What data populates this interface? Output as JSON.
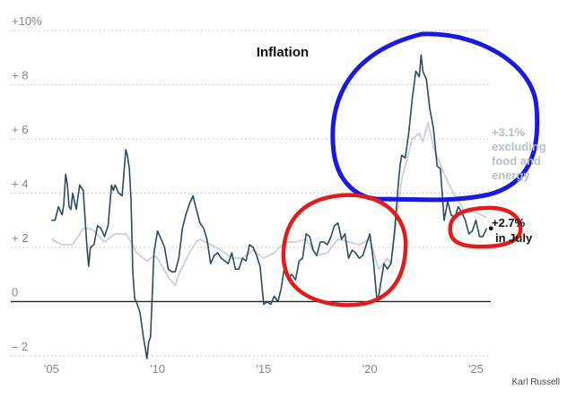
{
  "chart_data": {
    "type": "line",
    "title": "Inflation",
    "xlabel": "",
    "ylabel": "",
    "y_tick_labels": [
      "+10%",
      "+ 8",
      "+ 6",
      "+ 4",
      "+ 2",
      "0",
      "– 2"
    ],
    "y_ticks": [
      10,
      8,
      6,
      4,
      2,
      0,
      -2
    ],
    "x_tick_labels": [
      "'05",
      "'10",
      "'15",
      "'20",
      "'25"
    ],
    "x_ticks": [
      2005,
      2010,
      2015,
      2020,
      2025
    ],
    "xlim": [
      2004.9,
      2025.7
    ],
    "ylim": [
      -2.3,
      10.4
    ],
    "grid": "horizontal dotted",
    "colors": {
      "headline": "#2e4a5e",
      "core": "#c3ccd8",
      "zero_line": "#222222",
      "highlight_blue": "#1a1adf",
      "highlight_red": "#e21b1b"
    },
    "series": [
      {
        "key": "headline",
        "x": [
          2005.0,
          2005.17,
          2005.33,
          2005.5,
          2005.58,
          2005.67,
          2005.75,
          2005.83,
          2005.92,
          2006.0,
          2006.17,
          2006.33,
          2006.5,
          2006.67,
          2006.75,
          2006.83,
          2007.0,
          2007.17,
          2007.33,
          2007.5,
          2007.67,
          2007.83,
          2007.92,
          2008.0,
          2008.17,
          2008.33,
          2008.5,
          2008.58,
          2008.67,
          2008.75,
          2008.83,
          2008.92,
          2009.0,
          2009.17,
          2009.33,
          2009.5,
          2009.58,
          2009.67,
          2009.83,
          2010.0,
          2010.17,
          2010.33,
          2010.5,
          2010.67,
          2010.83,
          2011.0,
          2011.17,
          2011.33,
          2011.5,
          2011.67,
          2011.83,
          2012.0,
          2012.17,
          2012.33,
          2012.5,
          2012.67,
          2012.83,
          2013.0,
          2013.17,
          2013.33,
          2013.5,
          2013.67,
          2013.83,
          2014.0,
          2014.17,
          2014.33,
          2014.5,
          2014.67,
          2014.83,
          2015.0,
          2015.17,
          2015.33,
          2015.5,
          2015.67,
          2015.83,
          2016.0,
          2016.17,
          2016.33,
          2016.5,
          2016.67,
          2016.83,
          2017.0,
          2017.17,
          2017.33,
          2017.5,
          2017.67,
          2017.83,
          2018.0,
          2018.17,
          2018.33,
          2018.5,
          2018.67,
          2018.83,
          2019.0,
          2019.17,
          2019.33,
          2019.5,
          2019.67,
          2019.83,
          2020.0,
          2020.17,
          2020.33,
          2020.42,
          2020.5,
          2020.67,
          2020.83,
          2021.0,
          2021.17,
          2021.33,
          2021.42,
          2021.5,
          2021.67,
          2021.83,
          2022.0,
          2022.17,
          2022.33,
          2022.42,
          2022.5,
          2022.67,
          2022.83,
          2023.0,
          2023.17,
          2023.33,
          2023.5,
          2023.67,
          2023.83,
          2024.0,
          2024.17,
          2024.33,
          2024.5,
          2024.67,
          2024.83,
          2025.0,
          2025.17,
          2025.33,
          2025.5
        ],
        "y": [
          3.0,
          3.0,
          3.5,
          3.2,
          3.6,
          4.7,
          4.3,
          3.5,
          3.4,
          4.0,
          3.4,
          4.3,
          4.1,
          2.0,
          1.3,
          2.0,
          2.1,
          2.8,
          2.7,
          2.4,
          2.8,
          4.3,
          4.1,
          4.3,
          4.0,
          3.9,
          5.6,
          5.4,
          4.9,
          3.7,
          1.1,
          0.1,
          0.0,
          -0.4,
          -1.3,
          -2.1,
          -1.5,
          -1.3,
          1.8,
          2.6,
          2.3,
          2.0,
          1.2,
          1.1,
          1.1,
          1.6,
          2.7,
          3.2,
          3.6,
          3.9,
          3.4,
          2.9,
          2.7,
          2.3,
          1.4,
          1.7,
          1.8,
          1.6,
          1.5,
          1.4,
          1.8,
          1.2,
          1.2,
          1.6,
          1.5,
          2.1,
          2.0,
          1.7,
          1.3,
          -0.1,
          0.0,
          -0.1,
          0.2,
          0.0,
          0.5,
          1.4,
          0.9,
          1.0,
          0.8,
          1.5,
          1.6,
          2.5,
          2.4,
          1.9,
          1.7,
          2.2,
          2.2,
          2.1,
          2.4,
          2.8,
          2.9,
          2.3,
          2.5,
          1.6,
          1.9,
          1.8,
          1.6,
          1.7,
          2.1,
          2.5,
          1.5,
          0.1,
          0.2,
          0.6,
          1.4,
          1.2,
          1.4,
          2.6,
          4.2,
          5.0,
          5.4,
          5.3,
          6.2,
          7.5,
          8.5,
          8.3,
          9.1,
          8.5,
          8.2,
          7.1,
          6.4,
          5.0,
          4.9,
          3.0,
          3.7,
          3.2,
          3.1,
          3.5,
          3.3,
          3.0,
          2.5,
          2.6,
          3.0,
          2.4,
          2.4,
          2.7
        ]
      },
      {
        "key": "core",
        "x": [
          2005.0,
          2005.5,
          2006.0,
          2006.5,
          2006.83,
          2007.0,
          2007.5,
          2008.0,
          2008.5,
          2008.83,
          2009.0,
          2009.5,
          2009.83,
          2010.0,
          2010.5,
          2010.83,
          2011.0,
          2011.5,
          2011.83,
          2012.0,
          2012.5,
          2013.0,
          2013.5,
          2014.0,
          2014.5,
          2015.0,
          2015.5,
          2016.0,
          2016.5,
          2017.0,
          2017.5,
          2018.0,
          2018.5,
          2019.0,
          2019.5,
          2020.0,
          2020.42,
          2020.83,
          2021.0,
          2021.5,
          2022.0,
          2022.33,
          2022.5,
          2022.75,
          2023.0,
          2023.5,
          2024.0,
          2024.5,
          2024.83,
          2025.0,
          2025.5
        ],
        "y": [
          2.3,
          2.1,
          2.1,
          2.7,
          2.7,
          2.6,
          2.2,
          2.5,
          2.5,
          2.1,
          1.8,
          1.5,
          1.7,
          1.6,
          0.9,
          0.6,
          1.0,
          1.8,
          2.2,
          2.3,
          2.1,
          1.9,
          1.6,
          1.6,
          1.9,
          1.6,
          1.8,
          2.2,
          2.2,
          2.3,
          1.7,
          1.8,
          2.3,
          2.2,
          2.1,
          2.3,
          1.2,
          1.6,
          1.4,
          4.5,
          6.0,
          6.2,
          5.9,
          6.6,
          5.7,
          4.7,
          3.9,
          3.3,
          3.3,
          3.3,
          3.1
        ]
      }
    ],
    "annotations": {
      "core_value": "+3.1%",
      "core_label_1": "excluding",
      "core_label_2": "food and",
      "core_label_3": "energy",
      "headline_value": "+2.7%",
      "headline_label": "in July"
    },
    "credit": "Karl Russell"
  }
}
